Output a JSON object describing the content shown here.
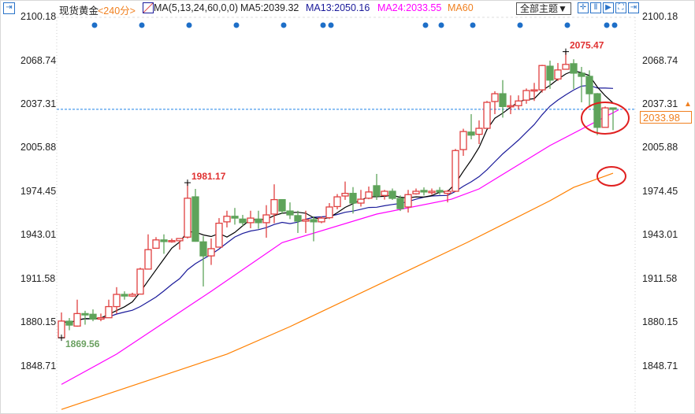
{
  "header": {
    "symbol": "现货黄金",
    "period": "<240分>",
    "indicator": "MA(5,13,24,60,0,0)",
    "ma5": "MA5:2039.32",
    "ma13": "MA13:2050.16",
    "ma24": "MA24:2033.55",
    "ma60": "MA60",
    "theme_button": "全部主题▼",
    "icons": [
      "crosshair-icon",
      "fit-range-icon",
      "play-icon",
      "fullscreen-icon",
      "exit-icon"
    ]
  },
  "colors": {
    "up": "#e04040",
    "down": "#5ea35a",
    "ma5": "#000000",
    "ma13": "#1a1a9a",
    "ma24": "#ff00ff",
    "ma60": "#ff8000",
    "price_line": "#1e82e6",
    "dots": "#1e6fc8",
    "annotation": "#e03030"
  },
  "current_price": "2033.98",
  "chart_data": {
    "type": "candlestick",
    "ylim": [
      1830,
      2105
    ],
    "yticks": [
      "2100.18",
      "2068.74",
      "2037.31",
      "2005.88",
      "1974.45",
      "1943.01",
      "1911.58",
      "1880.15",
      "1848.71"
    ],
    "ohlc": [
      [
        1869.6,
        1881.6,
        1887.8,
        1869.6
      ],
      [
        1881.5,
        1878.7,
        1883.8,
        1875
      ],
      [
        1878,
        1887,
        1897,
        1877.5
      ],
      [
        1887,
        1886,
        1889,
        1879
      ],
      [
        1886.5,
        1883,
        1890,
        1881.5
      ],
      [
        1883,
        1884,
        1887,
        1881.5
      ],
      [
        1884,
        1892,
        1897,
        1884
      ],
      [
        1892,
        1900.8,
        1906,
        1887
      ],
      [
        1900.8,
        1899.6,
        1903,
        1897
      ],
      [
        1899.6,
        1900.8,
        1902,
        1899
      ],
      [
        1901,
        1919,
        1920,
        1901
      ],
      [
        1919,
        1933,
        1944,
        1919
      ],
      [
        1934,
        1940,
        1942,
        1934
      ],
      [
        1940,
        1938.8,
        1944,
        1930
      ],
      [
        1938.8,
        1939.5,
        1941,
        1938
      ],
      [
        1939.4,
        1941,
        1941,
        1933
      ],
      [
        1942,
        1970,
        1981.17,
        1941
      ],
      [
        1971,
        1939,
        1976.7,
        1938.7
      ],
      [
        1938.6,
        1928.5,
        1942.7,
        1906.5
      ],
      [
        1928.5,
        1933.7,
        1941,
        1922
      ],
      [
        1934.8,
        1952,
        1955.7,
        1934.8
      ],
      [
        1953,
        1957,
        1961,
        1949
      ],
      [
        1957,
        1955.7,
        1963,
        1951
      ],
      [
        1955,
        1952.4,
        1958,
        1950
      ],
      [
        1952.4,
        1955.7,
        1961,
        1948.4
      ],
      [
        1955,
        1952.4,
        1961,
        1948
      ],
      [
        1952.4,
        1958,
        1965,
        1941.6
      ],
      [
        1958.6,
        1969,
        1980,
        1952
      ],
      [
        1969,
        1960.8,
        1969,
        1958.6
      ],
      [
        1960.8,
        1958,
        1967,
        1955
      ],
      [
        1957.5,
        1953.5,
        1961,
        1945
      ],
      [
        1953.5,
        1954.6,
        1961,
        1945
      ],
      [
        1954.6,
        1953,
        1957,
        1939
      ],
      [
        1953,
        1955.7,
        1957,
        1952
      ],
      [
        1956,
        1963.7,
        1966.5,
        1955
      ],
      [
        1964,
        1971,
        1973,
        1962
      ],
      [
        1971.6,
        1973.5,
        1982,
        1968.8
      ],
      [
        1973.5,
        1966.5,
        1978,
        1959
      ],
      [
        1966.5,
        1969.3,
        1976,
        1964
      ],
      [
        1970,
        1974.5,
        1978.4,
        1969.3
      ],
      [
        1979,
        1971.6,
        1987.5,
        1968.8
      ],
      [
        1972,
        1975,
        1976,
        1969
      ],
      [
        1975,
        1969.9,
        1977,
        1968.8
      ],
      [
        1969.9,
        1962.5,
        1972,
        1960.8
      ],
      [
        1963.7,
        1972.6,
        1976,
        1959.7
      ],
      [
        1973.2,
        1975,
        1977,
        1972.6
      ],
      [
        1975.6,
        1974.5,
        1977.8,
        1972
      ],
      [
        1974,
        1975,
        1977,
        1972.5
      ],
      [
        1975.6,
        1974.5,
        1978,
        1972.6
      ],
      [
        1973.5,
        1975,
        1976,
        1967
      ],
      [
        1975,
        2004.3,
        2005.5,
        1974.5
      ],
      [
        2005,
        2018,
        2020,
        2000.5
      ],
      [
        2017.6,
        2015.4,
        2030.5,
        2012.4
      ],
      [
        2016,
        2020.3,
        2026,
        2009
      ],
      [
        2020.3,
        2039,
        2040,
        2020.3
      ],
      [
        2039.6,
        2045.2,
        2047,
        2030.5
      ],
      [
        2045.2,
        2036,
        2055,
        2028
      ],
      [
        2036,
        2036.6,
        2044,
        2030.5
      ],
      [
        2036.6,
        2040,
        2044,
        2033.8
      ],
      [
        2040.6,
        2047.5,
        2049,
        2038
      ],
      [
        2047.5,
        2048,
        2053,
        2040
      ],
      [
        2048,
        2065.5,
        2066,
        2046
      ],
      [
        2065,
        2055,
        2069,
        2048.7
      ],
      [
        2055.8,
        2062.3,
        2067.3,
        2054.4
      ],
      [
        2062.8,
        2066.3,
        2075.47,
        2062.8
      ],
      [
        2066.8,
        2060,
        2070,
        2048.6
      ],
      [
        2060,
        2057.7,
        2064.5,
        2039
      ],
      [
        2057.7,
        2045.2,
        2062,
        2036
      ],
      [
        2045.2,
        2021,
        2045.7,
        2015.4
      ],
      [
        2021,
        2035,
        2036,
        2021
      ],
      [
        2035,
        2033.98,
        2035,
        2019
      ]
    ],
    "ma24_points": [
      [
        0,
        1836
      ],
      [
        7,
        1857.8
      ],
      [
        19,
        1903
      ],
      [
        28,
        1938
      ],
      [
        40,
        1958.6
      ],
      [
        49.5,
        1969.3
      ],
      [
        53,
        1976.7
      ],
      [
        60,
        2001
      ],
      [
        62,
        2007.9
      ],
      [
        70.7,
        2033.55
      ]
    ],
    "ma60_points": [
      [
        0,
        1818
      ],
      [
        21,
        1857.8
      ],
      [
        29,
        1877.6
      ],
      [
        51.5,
        1938.2
      ],
      [
        62,
        1968.2
      ],
      [
        65,
        1977.8
      ],
      [
        70,
        1988
      ]
    ],
    "signal_dots": [
      2,
      8,
      14,
      20,
      26,
      31,
      32,
      44,
      46,
      50,
      56,
      62,
      67,
      68
    ],
    "annotations": [
      {
        "label": "2075.47",
        "index": 64,
        "price": 2075.47,
        "color": "#e03030"
      },
      {
        "label": "1981.17",
        "index": 16,
        "price": 1981.17,
        "color": "#e03030"
      },
      {
        "label": "1869.56",
        "index": 0,
        "price": 1869.56,
        "color": "#6aa060"
      }
    ]
  }
}
